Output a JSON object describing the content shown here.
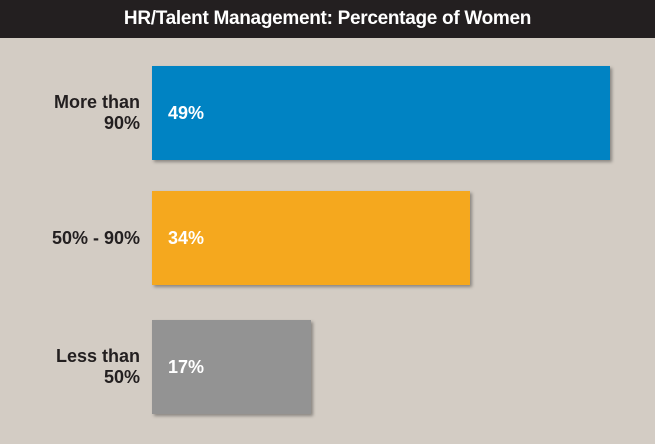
{
  "chart_data": {
    "type": "bar",
    "orientation": "horizontal",
    "title": "HR/Talent Management: Percentage of Women",
    "categories": [
      "More than 90%",
      "50% - 90%",
      "Less than 50%"
    ],
    "values": [
      49,
      34,
      17
    ],
    "value_labels": [
      "49%",
      "34%",
      "17%"
    ],
    "colors": [
      "#0083c3",
      "#f5a81e",
      "#939393"
    ]
  }
}
